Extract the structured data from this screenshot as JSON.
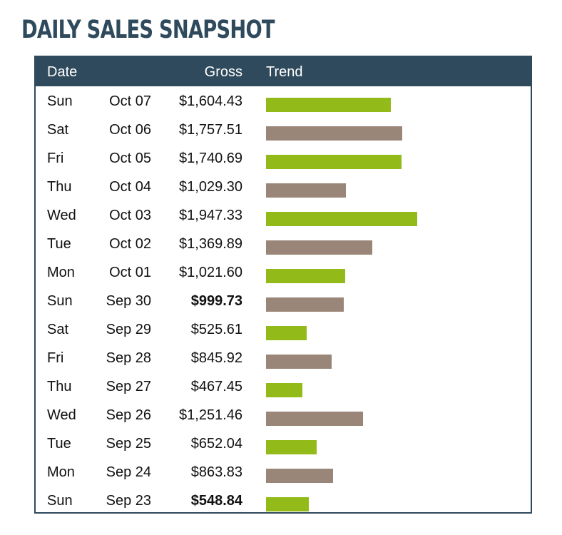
{
  "title": "DAILY SALES SNAPSHOT",
  "headers": {
    "date": "Date",
    "gross": "Gross",
    "trend": "Trend"
  },
  "colors": {
    "header_bg": "#2f4a5c",
    "bar_green": "#92bb1a",
    "bar_taupe": "#9a8679",
    "title": "#2f4a5c"
  },
  "chart_data": {
    "type": "table",
    "columns": [
      "Date",
      "Gross",
      "Trend"
    ],
    "rows": [
      {
        "day": "Sun",
        "date": "Oct 07",
        "gross": "$1,604.43",
        "value": 1604.43,
        "bold": false,
        "color": "green"
      },
      {
        "day": "Sat",
        "date": "Oct 06",
        "gross": "$1,757.51",
        "value": 1757.51,
        "bold": false,
        "color": "taupe"
      },
      {
        "day": "Fri",
        "date": "Oct 05",
        "gross": "$1,740.69",
        "value": 1740.69,
        "bold": false,
        "color": "green"
      },
      {
        "day": "Thu",
        "date": "Oct 04",
        "gross": "$1,029.30",
        "value": 1029.3,
        "bold": false,
        "color": "taupe"
      },
      {
        "day": "Wed",
        "date": "Oct 03",
        "gross": "$1,947.33",
        "value": 1947.33,
        "bold": false,
        "color": "green"
      },
      {
        "day": "Tue",
        "date": "Oct 02",
        "gross": "$1,369.89",
        "value": 1369.89,
        "bold": false,
        "color": "taupe"
      },
      {
        "day": "Mon",
        "date": "Oct 01",
        "gross": "$1,021.60",
        "value": 1021.6,
        "bold": false,
        "color": "green"
      },
      {
        "day": "Sun",
        "date": "Sep 30",
        "gross": "$999.73",
        "value": 999.73,
        "bold": true,
        "color": "taupe"
      },
      {
        "day": "Sat",
        "date": "Sep 29",
        "gross": "$525.61",
        "value": 525.61,
        "bold": false,
        "color": "green"
      },
      {
        "day": "Fri",
        "date": "Sep 28",
        "gross": "$845.92",
        "value": 845.92,
        "bold": false,
        "color": "taupe"
      },
      {
        "day": "Thu",
        "date": "Sep 27",
        "gross": "$467.45",
        "value": 467.45,
        "bold": false,
        "color": "green"
      },
      {
        "day": "Wed",
        "date": "Sep 26",
        "gross": "$1,251.46",
        "value": 1251.46,
        "bold": false,
        "color": "taupe"
      },
      {
        "day": "Tue",
        "date": "Sep 25",
        "gross": "$652.04",
        "value": 652.04,
        "bold": false,
        "color": "green"
      },
      {
        "day": "Mon",
        "date": "Sep 24",
        "gross": "$863.83",
        "value": 863.83,
        "bold": false,
        "color": "taupe"
      },
      {
        "day": "Sun",
        "date": "Sep 23",
        "gross": "$548.84",
        "value": 548.84,
        "bold": true,
        "color": "green"
      }
    ]
  }
}
